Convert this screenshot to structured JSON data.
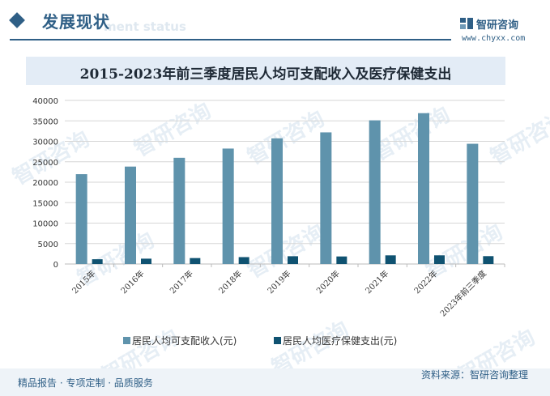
{
  "header": {
    "title": "发展现状",
    "subtitle": "ment status"
  },
  "brand": {
    "name": "智研咨询",
    "url": "www.chyxx.com",
    "watermark": "智研咨询"
  },
  "colors": {
    "income": "#5f93ac",
    "medical": "#0f5271",
    "accent": "#2f5f86"
  },
  "chart_data": {
    "type": "bar",
    "title": "2015-2023年前三季度居民人均可支配收入及医疗保健支出",
    "categories": [
      "2015年",
      "2016年",
      "2017年",
      "2018年",
      "2019年",
      "2020年",
      "2021年",
      "2022年",
      "2023年前三季度"
    ],
    "series": [
      {
        "name": "居民人均可支配收入(元)",
        "values": [
          21966,
          23821,
          25974,
          28228,
          30733,
          32189,
          35128,
          36883,
          29398
        ]
      },
      {
        "name": "居民人均医疗保健支出(元)",
        "values": [
          1165,
          1307,
          1451,
          1685,
          1902,
          1843,
          2115,
          2120,
          1923
        ]
      }
    ],
    "ylim": [
      0,
      40000
    ],
    "yticks": [
      0,
      5000,
      10000,
      15000,
      20000,
      25000,
      30000,
      35000,
      40000
    ],
    "grid": true,
    "legend": "bottom"
  },
  "footer": {
    "left": "精品报告 · 专项定制 · 品质服务",
    "right": "资料来源：智研咨询整理"
  }
}
